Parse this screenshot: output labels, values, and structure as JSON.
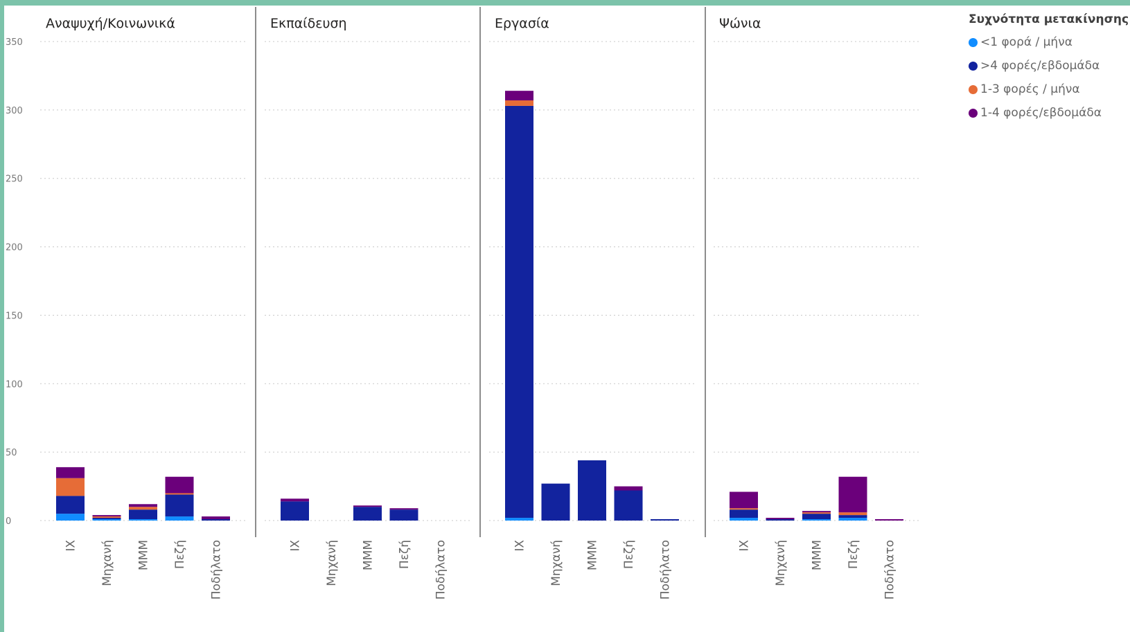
{
  "colors": {
    "lt1_month": "#118dff",
    "gt4_week": "#12239e",
    "1_3_month": "#e66c37",
    "1_4_week": "#6b007b"
  },
  "chart_data": {
    "type": "bar",
    "stacked": true,
    "title": "",
    "xlabel": "",
    "ylabel": "",
    "ylim": [
      0,
      350
    ],
    "y_ticks": [
      0,
      50,
      100,
      150,
      200,
      250,
      300,
      350
    ],
    "grid": true,
    "legend_position": "top-right",
    "legend_title": "Συχνότητα μετακίνησης",
    "categories": [
      "ΙΧ",
      "Μηχανή",
      "ΜΜΜ",
      "Πεζή",
      "Ποδήλατο"
    ],
    "series_names": [
      "<1 φορά / μήνα",
      ">4 φορές/εβδομάδα",
      "1-3 φορές / μήνα",
      "1-4 φορές/εβδομάδα"
    ],
    "series_colors": [
      "#118dff",
      "#12239e",
      "#e66c37",
      "#6b007b"
    ],
    "panels": [
      {
        "title": "Αναψυχή/Κοινωνικά",
        "series": [
          {
            "name": "<1 φορά / μήνα",
            "values": [
              5,
              1,
              1,
              3,
              0
            ]
          },
          {
            "name": ">4 φορές/εβδομάδα",
            "values": [
              13,
              1,
              7,
              16,
              1
            ]
          },
          {
            "name": "1-3 φορές / μήνα",
            "values": [
              13,
              1,
              2,
              1,
              0
            ]
          },
          {
            "name": "1-4 φορές/εβδομάδα",
            "values": [
              8,
              1,
              2,
              12,
              2
            ]
          }
        ]
      },
      {
        "title": "Εκπαίδευση",
        "series": [
          {
            "name": "<1 φορά / μήνα",
            "values": [
              0,
              0,
              0,
              0,
              0
            ]
          },
          {
            "name": ">4 φορές/εβδομάδα",
            "values": [
              14,
              0,
              10,
              8,
              0
            ]
          },
          {
            "name": "1-3 φορές / μήνα",
            "values": [
              0,
              0,
              0,
              0,
              0
            ]
          },
          {
            "name": "1-4 φορές/εβδομάδα",
            "values": [
              2,
              0,
              1,
              1,
              0
            ]
          }
        ]
      },
      {
        "title": "Εργασία",
        "series": [
          {
            "name": "<1 φορά / μήνα",
            "values": [
              2,
              0,
              0,
              0,
              0
            ]
          },
          {
            "name": ">4 φορές/εβδομάδα",
            "values": [
              301,
              27,
              44,
              22,
              1
            ]
          },
          {
            "name": "1-3 φορές / μήνα",
            "values": [
              4,
              0,
              0,
              0,
              0
            ]
          },
          {
            "name": "1-4 φορές/εβδομάδα",
            "values": [
              7,
              0,
              0,
              3,
              0
            ]
          }
        ]
      },
      {
        "title": "Ψώνια",
        "series": [
          {
            "name": "<1 φορά / μήνα",
            "values": [
              2,
              0,
              1,
              2,
              0
            ]
          },
          {
            "name": ">4 φορές/εβδομάδα",
            "values": [
              6,
              1,
              4,
              2,
              0
            ]
          },
          {
            "name": "1-3 φορές / μήνα",
            "values": [
              1,
              0,
              1,
              2,
              0
            ]
          },
          {
            "name": "1-4 φορές/εβδομάδα",
            "values": [
              12,
              1,
              1,
              26,
              1
            ]
          }
        ]
      }
    ]
  }
}
